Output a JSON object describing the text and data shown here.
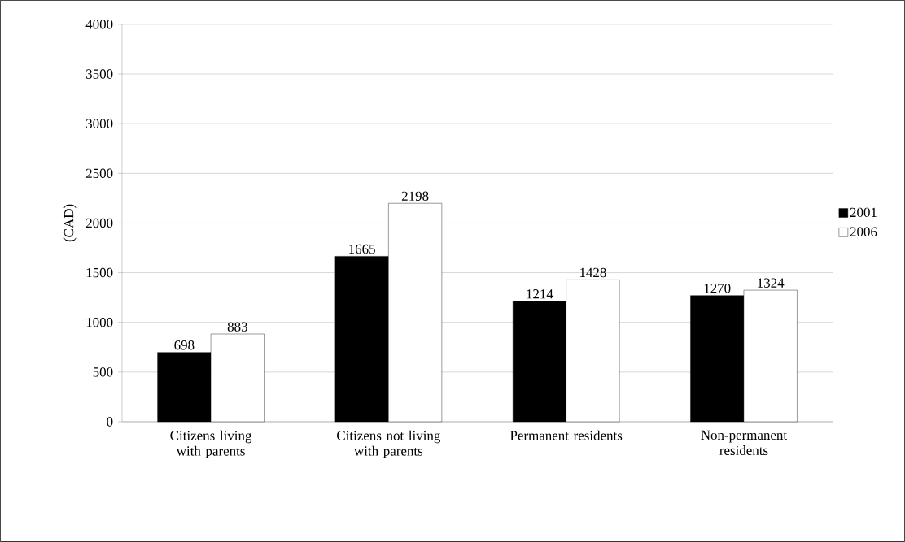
{
  "chart_data": {
    "type": "bar",
    "ylabel": "(CAD)",
    "categories": [
      "Citizens living with parents",
      "Citizens not living with parents",
      "Permanent residents",
      "Non-permanent residents"
    ],
    "series": [
      {
        "name": "2001",
        "color": "#000000",
        "values": [
          698,
          1665,
          1214,
          1270
        ]
      },
      {
        "name": "2006",
        "color": "#ffffff",
        "values": [
          883,
          2198,
          1428,
          1324
        ]
      }
    ],
    "ylim": [
      0,
      4000
    ],
    "yticks": [
      0,
      500,
      1000,
      1500,
      2000,
      2500,
      3000,
      3500,
      4000
    ],
    "grid": "y",
    "legend": "right",
    "data_labels": true
  }
}
